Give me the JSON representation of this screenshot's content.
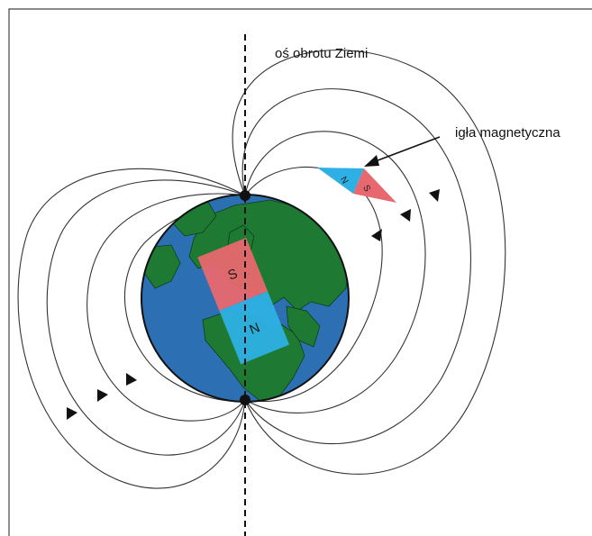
{
  "labels": {
    "axis": "oś obrotu Ziemi",
    "needle": "igła magnetyczna"
  },
  "magnet": {
    "south": "S",
    "north": "N"
  },
  "needle": {
    "north": "N",
    "south": "S"
  },
  "colors": {
    "ocean": "#2c6fb3",
    "land": "#1e7a32",
    "south_pole_color": "#e8686f",
    "north_pole_color": "#2eb0e4",
    "field_line": "#333333"
  }
}
